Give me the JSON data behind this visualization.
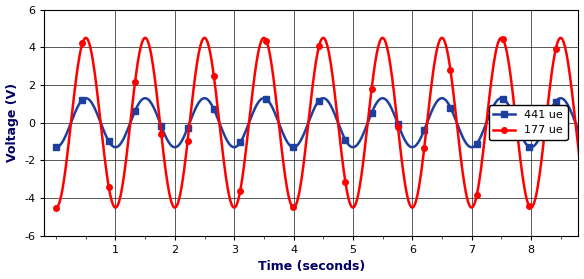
{
  "title": "",
  "xlabel": "Time (seconds)",
  "ylabel": "Voltage (V)",
  "xlim": [
    -0.2,
    8.8
  ],
  "ylim": [
    -6,
    6
  ],
  "xticks": [
    1,
    2,
    3,
    4,
    5,
    6,
    7,
    8
  ],
  "yticks": [
    -6,
    -4,
    -2,
    0,
    2,
    4,
    6
  ],
  "freq": 1.0,
  "red_amplitude": 4.5,
  "blue_amplitude": 1.3,
  "red_phase_deg": -90,
  "blue_phase_deg": -90,
  "red_color": "#FF0000",
  "blue_color": "#1F3F9F",
  "red_label": "177 ue",
  "blue_label": "441 ue",
  "n_points": 1000,
  "marker_interval_red": 50,
  "marker_interval_blue": 50,
  "background_color": "#FFFFFF",
  "plot_bg_color": "#FFFFFF",
  "grid_color": "#000000",
  "legend_loc": "center right",
  "figsize": [
    5.84,
    2.79
  ],
  "dpi": 100
}
